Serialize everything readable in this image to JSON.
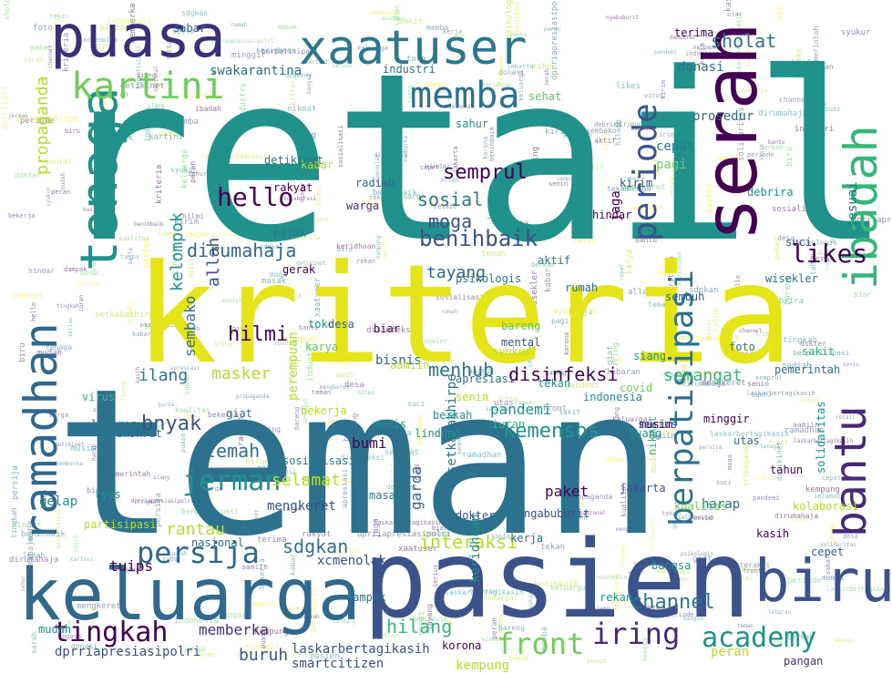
{
  "image": {
    "kind": "word cloud",
    "background": "#ffffff",
    "palette": [
      "#440154",
      "#3b528b",
      "#21918c",
      "#5ec962",
      "#fde725",
      "#2c728e",
      "#472d7b",
      "#b5de2b"
    ]
  },
  "words": [
    {
      "text": "retail",
      "color": "#21918c"
    },
    {
      "text": "teman",
      "color": "#2c728e"
    },
    {
      "text": "kriteria",
      "color": "#e4e419"
    },
    {
      "text": "pasien",
      "color": "#3b528b"
    },
    {
      "text": "keluarga",
      "color": "#31688e"
    },
    {
      "text": "serah",
      "color": "#440154"
    },
    {
      "text": "puasa",
      "color": "#3b2f7a"
    },
    {
      "text": "xaatuser",
      "color": "#2a788e"
    },
    {
      "text": "tenaga",
      "color": "#21918c"
    },
    {
      "text": "ramadhan",
      "color": "#31688e"
    },
    {
      "text": "ibadah",
      "color": "#35b779"
    },
    {
      "text": "bantu",
      "color": "#482878"
    },
    {
      "text": "biru",
      "color": "#3b528b"
    },
    {
      "text": "kartini",
      "color": "#6ece58"
    },
    {
      "text": "memba",
      "color": "#2c728e"
    },
    {
      "text": "periode",
      "color": "#3b528b"
    },
    {
      "text": "berpatisipasi",
      "color": "#2c728e"
    },
    {
      "text": "academy",
      "color": "#21918c"
    },
    {
      "text": "front",
      "color": "#6ece58"
    },
    {
      "text": "tingkah",
      "color": "#440154"
    },
    {
      "text": "persija",
      "color": "#31688e"
    },
    {
      "text": "iring",
      "color": "#482878"
    },
    {
      "text": "channel",
      "color": "#2a788e"
    },
    {
      "text": "hello",
      "color": "#440154"
    },
    {
      "text": "benihbaik",
      "color": "#3b528b"
    },
    {
      "text": "dirumahaja",
      "color": "#31688e"
    },
    {
      "text": "likes",
      "color": "#440154"
    },
    {
      "text": "sholat",
      "color": "#2c728e"
    },
    {
      "text": "semprul",
      "color": "#440154"
    },
    {
      "text": "sosial",
      "color": "#2a788e"
    },
    {
      "text": "moga",
      "color": "#3b528b"
    },
    {
      "text": "tayang",
      "color": "#31688e"
    },
    {
      "text": "disinfeksi",
      "color": "#440154"
    },
    {
      "text": "menhub",
      "color": "#2c728e"
    },
    {
      "text": "semangat",
      "color": "#35b779"
    },
    {
      "text": "masker",
      "color": "#b5de2b"
    },
    {
      "text": "ilang",
      "color": "#2a788e"
    },
    {
      "text": "hilmi",
      "color": "#440154"
    },
    {
      "text": "bnyak",
      "color": "#3b528b"
    },
    {
      "text": "lemah",
      "color": "#2c728e"
    },
    {
      "text": "jerman",
      "color": "#21918c"
    },
    {
      "text": "selamat",
      "color": "#b5de2b"
    },
    {
      "text": "kemensos",
      "color": "#21918c"
    },
    {
      "text": "interaksi",
      "color": "#b5de2b"
    },
    {
      "text": "sdgkan",
      "color": "#2c728e"
    },
    {
      "text": "hilang",
      "color": "#35b779"
    },
    {
      "text": "buruh",
      "color": "#3b528b"
    },
    {
      "text": "memberka",
      "color": "#472d7b"
    },
    {
      "text": "tuips",
      "color": "#440154"
    },
    {
      "text": "rantau",
      "color": "#b5de2b"
    },
    {
      "text": "paket",
      "color": "#440154"
    },
    {
      "text": "harap",
      "color": "#2c728e"
    },
    {
      "text": "garda",
      "color": "#31688e"
    },
    {
      "text": "pandemi",
      "color": "#21918c"
    },
    {
      "text": "bumi",
      "color": "#440154"
    },
    {
      "text": "bisnis",
      "color": "#31688e"
    },
    {
      "text": "allah",
      "color": "#3b528b"
    },
    {
      "text": "kelompok",
      "color": "#21918c"
    },
    {
      "text": "sembako",
      "color": "#2c728e"
    },
    {
      "text": "perempuan",
      "color": "#b5de2b"
    },
    {
      "text": "propaganda",
      "color": "#b5de2b"
    },
    {
      "text": "gelap",
      "color": "#21918c"
    },
    {
      "text": "jaga",
      "color": "#440154"
    },
    {
      "text": "cepat",
      "color": "#2a788e"
    },
    {
      "text": "pagi",
      "color": "#6ece58"
    },
    {
      "text": "swakarantina",
      "color": "#2c728e"
    },
    {
      "text": "donasi",
      "color": "#2c728e"
    },
    {
      "text": "prosedur",
      "color": "#31688e"
    },
    {
      "text": "xcmenolak",
      "color": "#3b528b"
    },
    {
      "text": "laskarbertagikasih",
      "color": "#3b528b"
    },
    {
      "text": "smartcitizen",
      "color": "#3b528b"
    },
    {
      "text": "kempung",
      "color": "#b5de2b"
    },
    {
      "text": "mengkeret",
      "color": "#3b528b"
    },
    {
      "text": "setkabakhirpe",
      "color": "#2c728e"
    },
    {
      "text": "keridhoan",
      "color": "#21918c"
    },
    {
      "text": "peran",
      "color": "#b5de2b"
    },
    {
      "text": "sesuai",
      "color": "#2c728e"
    },
    {
      "text": "dprriapresiasipolri",
      "color": "#3b528b"
    },
    {
      "text": "ryus",
      "color": "#21918c"
    },
    {
      "text": "giat",
      "color": "#2c728e"
    },
    {
      "text": "biar",
      "color": "#440154"
    },
    {
      "text": "aamiin",
      "color": "#b5de2b"
    },
    {
      "text": "korona",
      "color": "#440154"
    },
    {
      "text": "nikmat",
      "color": "#35b779"
    },
    {
      "text": "partisipasi",
      "color": "#b5de2b"
    },
    {
      "text": "terima",
      "color": "#440154"
    },
    {
      "text": "sabar",
      "color": "#31688e"
    },
    {
      "text": "sehat",
      "color": "#5ec962"
    },
    {
      "text": "kabar",
      "color": "#b5de2b"
    },
    {
      "text": "mudah",
      "color": "#21918c"
    },
    {
      "text": "pangan",
      "color": "#472d7b"
    },
    {
      "text": "apresiasi",
      "color": "#2c728e"
    },
    {
      "text": "berkah",
      "color": "#21918c"
    },
    {
      "text": "rakyat",
      "color": "#440154"
    },
    {
      "text": "mental",
      "color": "#3b528b"
    },
    {
      "text": "toko",
      "color": "#21918c"
    },
    {
      "text": "sembuh",
      "color": "#31688e"
    },
    {
      "text": "lebaran",
      "color": "#2a788e"
    },
    {
      "text": "iuran",
      "color": "#35b779"
    },
    {
      "text": "serius",
      "color": "#2c728e"
    },
    {
      "text": "solidaritas",
      "color": "#21918c"
    },
    {
      "text": "musim",
      "color": "#440154"
    },
    {
      "text": "industri",
      "color": "#2c728e"
    },
    {
      "text": "ngabuburit",
      "color": "#3b528b"
    },
    {
      "text": "psikologis",
      "color": "#2a788e"
    },
    {
      "text": "sahur",
      "color": "#21918c"
    },
    {
      "text": "utas",
      "color": "#2c728e"
    },
    {
      "text": "demokrat",
      "color": "#2c728e"
    },
    {
      "text": "senin",
      "color": "#b5de2b"
    },
    {
      "text": "rekan",
      "color": "#21918c"
    },
    {
      "text": "masak",
      "color": "#2a788e"
    },
    {
      "text": "cepet",
      "color": "#31688e"
    },
    {
      "text": "minggir",
      "color": "#440154"
    },
    {
      "text": "siang",
      "color": "#21918c"
    },
    {
      "text": "bareng",
      "color": "#5ec962"
    },
    {
      "text": "dampak",
      "color": "#2c728e"
    },
    {
      "text": "hindar",
      "color": "#440154"
    },
    {
      "text": "kirim",
      "color": "#3b528b"
    },
    {
      "text": "aktif",
      "color": "#2a788e"
    },
    {
      "text": "radiah",
      "color": "#31688e"
    },
    {
      "text": "tekan",
      "color": "#21918c"
    },
    {
      "text": "detikinet",
      "color": "#2c728e"
    },
    {
      "text": "kualitas",
      "color": "#6ece58"
    },
    {
      "text": "wisekler",
      "color": "#2c728e"
    },
    {
      "text": "desa",
      "color": "#31688e"
    },
    {
      "text": "syukur",
      "color": "#b5de2b"
    },
    {
      "text": "juang",
      "color": "#21918c"
    },
    {
      "text": "tahun",
      "color": "#440154"
    },
    {
      "text": "suci",
      "color": "#3b528b"
    },
    {
      "text": "foto",
      "color": "#2c728e"
    },
    {
      "text": "debrira",
      "color": "#21918c"
    },
    {
      "text": "kolaborasi",
      "color": "#b5de2b"
    },
    {
      "text": "virus",
      "color": "#35b779"
    },
    {
      "text": "pajak",
      "color": "#2a788e"
    },
    {
      "text": "gerak",
      "color": "#440154"
    },
    {
      "text": "karya",
      "color": "#5ec962"
    },
    {
      "text": "rumah",
      "color": "#31688e"
    },
    {
      "text": "indonesia",
      "color": "#21918c"
    },
    {
      "text": "jakarta",
      "color": "#3b528b"
    },
    {
      "text": "pemerintah",
      "color": "#2c728e"
    },
    {
      "text": "warga",
      "color": "#472d7b"
    },
    {
      "text": "lindung",
      "color": "#21918c"
    },
    {
      "text": "covid",
      "color": "#6ece58"
    },
    {
      "text": "sosialisasi",
      "color": "#2a788e"
    },
    {
      "text": "bekerja",
      "color": "#b5de2b"
    },
    {
      "text": "kerja",
      "color": "#31688e"
    },
    {
      "text": "bangsa",
      "color": "#21918c"
    },
    {
      "text": "kasih",
      "color": "#440154"
    },
    {
      "text": "nasional",
      "color": "#2c728e"
    },
    {
      "text": "sakit",
      "color": "#35b779"
    },
    {
      "text": "dokter",
      "color": "#3b528b"
    },
    {
      "text": "medis",
      "color": "#21918c"
    }
  ]
}
